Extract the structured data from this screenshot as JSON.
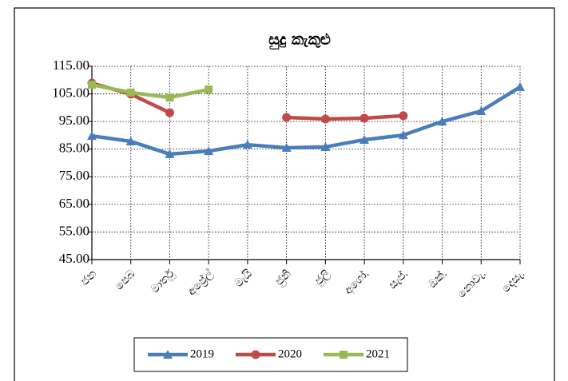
{
  "chart_data": {
    "type": "line",
    "title": "සුදු කැකුළු",
    "categories": [
      "ජන",
      "පෙබ",
      "මාර්තු",
      "අප්‍රේල්",
      "මැයි",
      "ජුනි",
      "ජූලි",
      "අගෝ.",
      "සැප්.",
      "ඔක්.",
      "නොවැ.",
      "දෙසැ."
    ],
    "series": [
      {
        "name": "2019",
        "color": "#4a7ebb",
        "marker": "triangle",
        "values": [
          89.8,
          87.8,
          83.2,
          84.3,
          86.6,
          85.5,
          85.8,
          88.4,
          90.1,
          95.0,
          98.8,
          107.5
        ]
      },
      {
        "name": "2020",
        "color": "#be4b48",
        "marker": "circle",
        "values": [
          108.9,
          104.9,
          98.2,
          null,
          null,
          96.5,
          95.9,
          96.2,
          97.1,
          null,
          null,
          null
        ]
      },
      {
        "name": "2021",
        "color": "#98b954",
        "marker": "square",
        "values": [
          108.3,
          105.5,
          103.7,
          106.6,
          null,
          null,
          null,
          null,
          null,
          null,
          null,
          null
        ]
      }
    ],
    "ylim": [
      45,
      115
    ],
    "yticks": [
      {
        "value": 45,
        "label": "45.00"
      },
      {
        "value": 55,
        "label": "55.00"
      },
      {
        "value": 65,
        "label": "65.00"
      },
      {
        "value": 75,
        "label": "75.00"
      },
      {
        "value": 85,
        "label": "85.00"
      },
      {
        "value": 95,
        "label": "95.00"
      },
      {
        "value": 105,
        "label": "105.00"
      },
      {
        "value": 115,
        "label": "115.00"
      }
    ],
    "grid": true,
    "legend": "bottom"
  }
}
